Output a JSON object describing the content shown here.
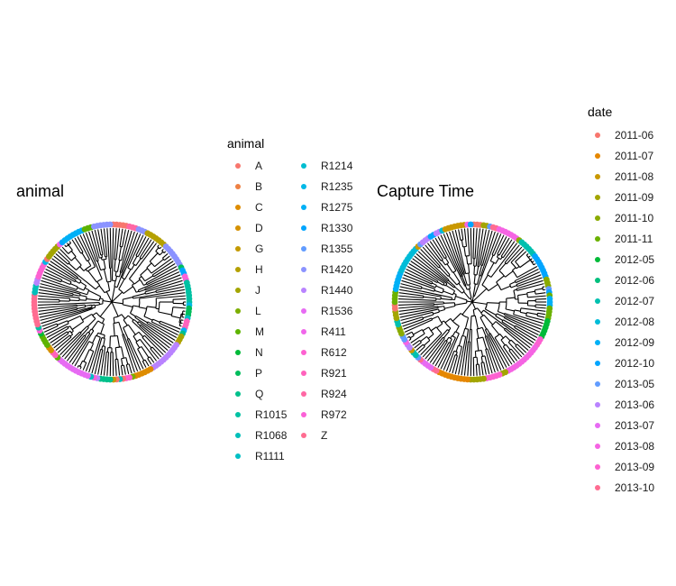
{
  "chart_data": [
    {
      "type": "other",
      "title": "animal",
      "legend": {
        "title": "animal",
        "placement": "right",
        "entries": [
          {
            "label": "A",
            "color": "#F8766D"
          },
          {
            "label": "B",
            "color": "#EE8043"
          },
          {
            "label": "C",
            "color": "#DE8C00"
          },
          {
            "label": "D",
            "color": "#D59100"
          },
          {
            "label": "G",
            "color": "#C49A00"
          },
          {
            "label": "H",
            "color": "#B4A000"
          },
          {
            "label": "J",
            "color": "#A3A500"
          },
          {
            "label": "L",
            "color": "#7CAE00"
          },
          {
            "label": "M",
            "color": "#5EB300"
          },
          {
            "label": "N",
            "color": "#00BA38"
          },
          {
            "label": "P",
            "color": "#00BD5C"
          },
          {
            "label": "Q",
            "color": "#00C08B"
          },
          {
            "label": "R1015",
            "color": "#00C1A3"
          },
          {
            "label": "R1068",
            "color": "#00BFB9"
          },
          {
            "label": "R1111",
            "color": "#00BFC4"
          },
          {
            "label": "R1214",
            "color": "#00BDD0"
          },
          {
            "label": "R1235",
            "color": "#00B8E7"
          },
          {
            "label": "R1275",
            "color": "#00B0F6"
          },
          {
            "label": "R1330",
            "color": "#00A5FF"
          },
          {
            "label": "R1355",
            "color": "#619CFF"
          },
          {
            "label": "R1420",
            "color": "#8B93FF"
          },
          {
            "label": "R1440",
            "color": "#B983FF"
          },
          {
            "label": "R1536",
            "color": "#E76BF3"
          },
          {
            "label": "R411",
            "color": "#F066EA"
          },
          {
            "label": "R612",
            "color": "#FD61D1"
          },
          {
            "label": "R921",
            "color": "#FF62BC"
          },
          {
            "label": "R924",
            "color": "#FF67A4"
          },
          {
            "label": "R972",
            "color": "#FB61D7"
          },
          {
            "label": "Z",
            "color": "#FF6C91"
          }
        ]
      }
    },
    {
      "type": "other",
      "title": "Capture Time",
      "legend": {
        "title": "date",
        "placement": "right",
        "entries": [
          {
            "label": "2011-06",
            "color": "#F8766D"
          },
          {
            "label": "2011-07",
            "color": "#E58700"
          },
          {
            "label": "2011-08",
            "color": "#C99800"
          },
          {
            "label": "2011-09",
            "color": "#A3A500"
          },
          {
            "label": "2011-10",
            "color": "#8AAB00"
          },
          {
            "label": "2011-11",
            "color": "#6BB100"
          },
          {
            "label": "2012-05",
            "color": "#00BA38"
          },
          {
            "label": "2012-06",
            "color": "#00BF7D"
          },
          {
            "label": "2012-07",
            "color": "#00C0AF"
          },
          {
            "label": "2012-08",
            "color": "#00BCD8"
          },
          {
            "label": "2012-09",
            "color": "#00B0F6"
          },
          {
            "label": "2012-10",
            "color": "#00A5FF"
          },
          {
            "label": "2013-05",
            "color": "#619CFF"
          },
          {
            "label": "2013-06",
            "color": "#B983FF"
          },
          {
            "label": "2013-07",
            "color": "#E76BF3"
          },
          {
            "label": "2013-08",
            "color": "#F564E3"
          },
          {
            "label": "2013-09",
            "color": "#FD61D1"
          },
          {
            "label": "2013-10",
            "color": "#FF6C91"
          }
        ]
      }
    }
  ]
}
